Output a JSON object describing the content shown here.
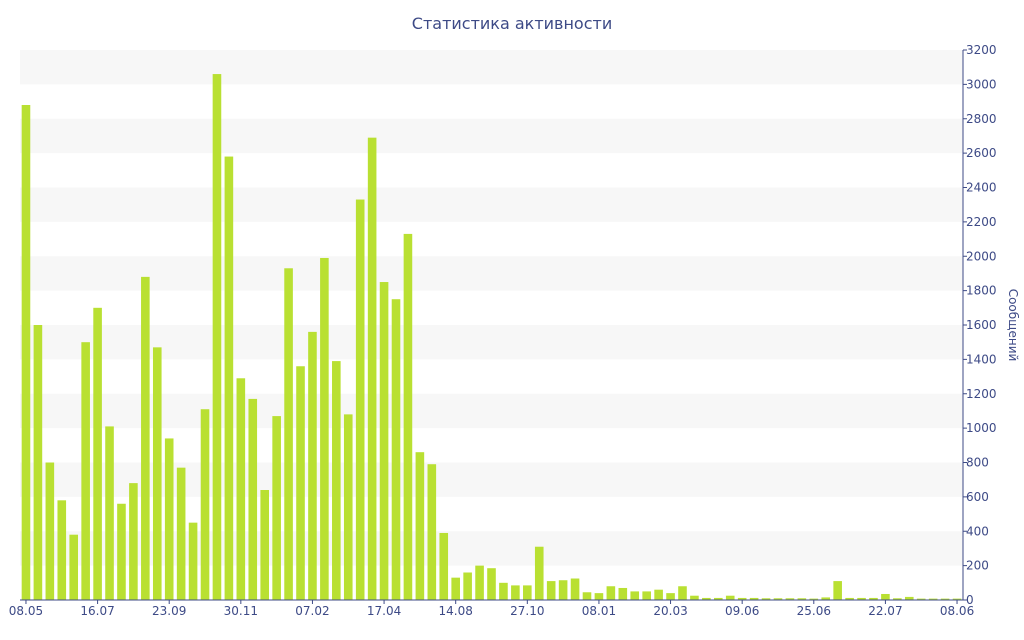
{
  "chart_data": {
    "type": "bar",
    "title": "Статистика активности",
    "ylabel": "Сообщений",
    "ylim": [
      0,
      3200
    ],
    "yticks": [
      0,
      200,
      400,
      600,
      800,
      1000,
      1200,
      1400,
      1600,
      1800,
      2000,
      2200,
      2400,
      2600,
      2800,
      3000,
      3200
    ],
    "xtick_labels": [
      "08.05",
      "16.07",
      "23.09",
      "30.11",
      "07.02",
      "17.04",
      "14.08",
      "27.10",
      "08.01",
      "20.03",
      "09.06",
      "25.06",
      "22.07",
      "08.06"
    ],
    "xtick_positions": [
      0,
      6,
      12,
      18,
      24,
      30,
      36,
      42,
      48,
      54,
      60,
      66,
      72,
      78
    ],
    "grid": true,
    "legend": "none",
    "colors": {
      "bar": "#b9e032",
      "axis": "#3d4a86",
      "band": "#f7f7f7"
    },
    "values": [
      2880,
      1600,
      800,
      580,
      380,
      1500,
      1700,
      1010,
      560,
      680,
      1880,
      1470,
      940,
      770,
      450,
      1110,
      3060,
      2580,
      1290,
      1170,
      640,
      1070,
      1930,
      1360,
      1560,
      1990,
      1390,
      1080,
      2330,
      2690,
      1850,
      1750,
      2130,
      860,
      790,
      390,
      130,
      160,
      200,
      185,
      100,
      85,
      85,
      310,
      110,
      115,
      125,
      45,
      40,
      80,
      70,
      50,
      50,
      60,
      40,
      80,
      25,
      12,
      12,
      25,
      12,
      12,
      10,
      10,
      10,
      10,
      8,
      15,
      110,
      12,
      12,
      12,
      35,
      10,
      18,
      8,
      8,
      8,
      8
    ]
  }
}
